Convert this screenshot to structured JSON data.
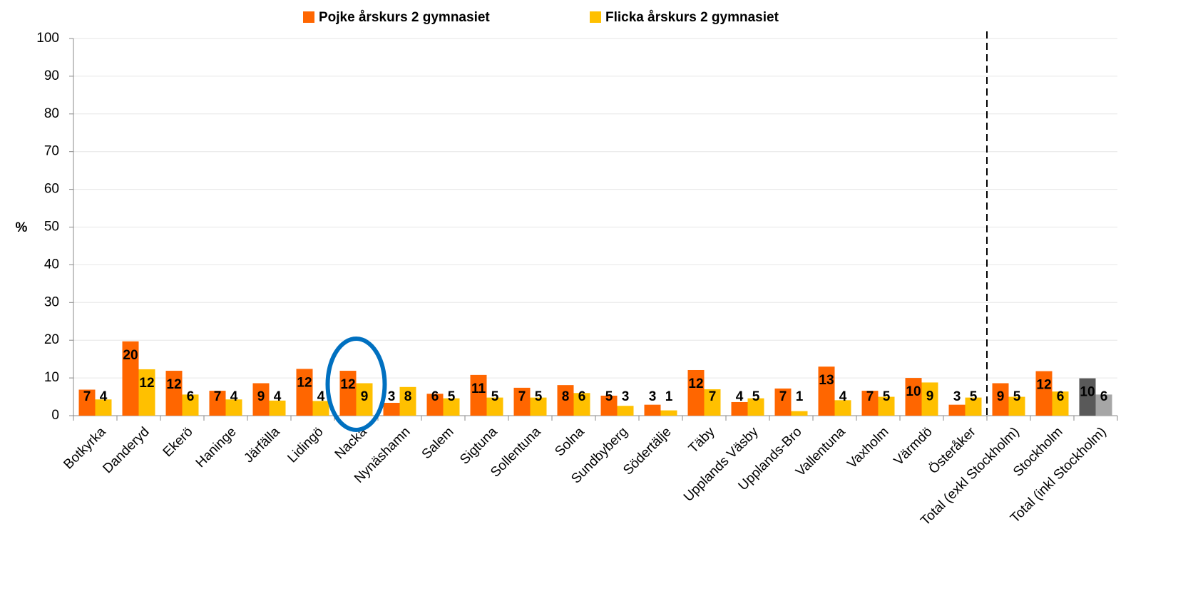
{
  "chart_data": {
    "type": "bar",
    "ylabel": "%",
    "categories": [
      "Botkyrka",
      "Danderyd",
      "Ekerö",
      "Haninge",
      "Järfälla",
      "Lidingö",
      "Nacka",
      "Nynäshamn",
      "Salem",
      "Sigtuna",
      "Sollentuna",
      "Solna",
      "Sundbyberg",
      "Södertälje",
      "Täby",
      "Upplands Väsby",
      "Upplands-Bro",
      "Vallentuna",
      "Vaxholm",
      "Värmdö",
      "Österåker",
      "Total (exkl Stockholm)",
      "Stockholm",
      "Total (inkl Stockholm)"
    ],
    "series": [
      {
        "name": "Pojke årskurs 2 gymnasiet",
        "color": "#ff6600",
        "colors": [
          "#ff6600",
          "#ff6600",
          "#ff6600",
          "#ff6600",
          "#ff6600",
          "#ff6600",
          "#ff6600",
          "#ff6600",
          "#ff6600",
          "#ff6600",
          "#ff6600",
          "#ff6600",
          "#ff6600",
          "#ff6600",
          "#ff6600",
          "#ff6600",
          "#ff6600",
          "#ff6600",
          "#ff6600",
          "#ff6600",
          "#ff6600",
          "#ff6600",
          "#ff6600",
          "#595959"
        ],
        "values": [
          6.9,
          19.7,
          11.9,
          6.6,
          8.6,
          12.4,
          11.9,
          3.4,
          5.8,
          10.8,
          7.4,
          8.1,
          5.3,
          2.9,
          12.1,
          3.6,
          7.2,
          13.0,
          6.6,
          10.0,
          2.9,
          8.6,
          11.8,
          9.9
        ],
        "value_labels": [
          "7",
          "20",
          "12",
          "7",
          "9",
          "12",
          "12",
          "3",
          "6",
          "11",
          "7",
          "8",
          "5",
          "3",
          "12",
          "4",
          "7",
          "13",
          "7",
          "10",
          "3",
          "9",
          "12",
          "10"
        ]
      },
      {
        "name": "Flicka årskurs 2 gymnasiet",
        "color": "#ffc000",
        "colors": [
          "#ffc000",
          "#ffc000",
          "#ffc000",
          "#ffc000",
          "#ffc000",
          "#ffc000",
          "#ffc000",
          "#ffc000",
          "#ffc000",
          "#ffc000",
          "#ffc000",
          "#ffc000",
          "#ffc000",
          "#ffc000",
          "#ffc000",
          "#ffc000",
          "#ffc000",
          "#ffc000",
          "#ffc000",
          "#ffc000",
          "#ffc000",
          "#ffc000",
          "#ffc000",
          "#a6a6a6"
        ],
        "values": [
          4.3,
          12.3,
          5.6,
          4.3,
          4.0,
          3.9,
          8.6,
          7.6,
          4.6,
          4.8,
          4.8,
          6.0,
          2.6,
          1.4,
          7.0,
          4.6,
          1.2,
          4.1,
          5.0,
          8.8,
          4.8,
          5.0,
          6.4,
          5.6
        ],
        "value_labels": [
          "4",
          "12",
          "6",
          "4",
          "4",
          "4",
          "9",
          "8",
          "5",
          "5",
          "5",
          "6",
          "3",
          "1",
          "7",
          "5",
          "1",
          "4",
          "5",
          "9",
          "5",
          "5",
          "6",
          "6"
        ]
      }
    ],
    "ylim": [
      0,
      100
    ],
    "yticks": [
      0,
      10,
      20,
      30,
      40,
      50,
      60,
      70,
      80,
      90,
      100
    ],
    "grid": true,
    "legend": "top"
  }
}
